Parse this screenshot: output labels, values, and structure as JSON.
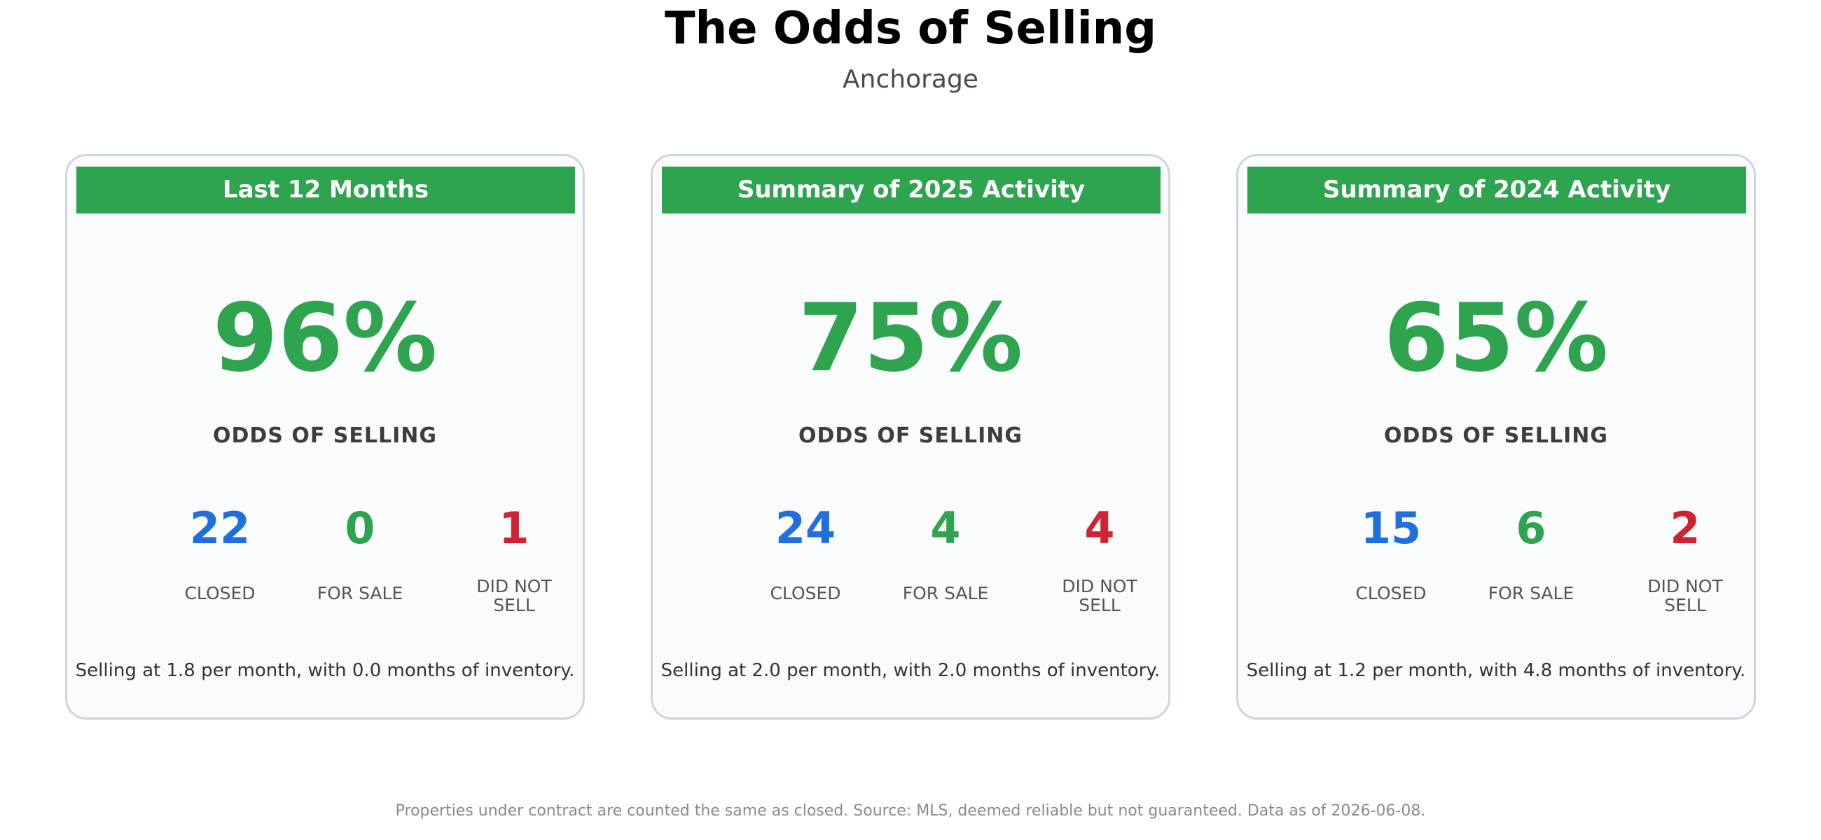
{
  "header": {
    "title": "The Odds of Selling",
    "subtitle": "Anchorage"
  },
  "colors": {
    "accent_green": "#2ea44f",
    "closed_blue": "#1f6fde",
    "did_not_sell_red": "#cf2233"
  },
  "cards": [
    {
      "header": "Last 12 Months",
      "odds": "96%",
      "odds_label": "ODDS OF SELLING",
      "closed": "22",
      "closed_label": "CLOSED",
      "for_sale": "0",
      "for_sale_label": "FOR SALE",
      "did_not_sell": "1",
      "did_not_sell_label_line1": "DID NOT",
      "did_not_sell_label_line2": "SELL",
      "summary": "Selling at 1.8 per month, with 0.0 months of inventory."
    },
    {
      "header": "Summary of 2025 Activity",
      "odds": "75%",
      "odds_label": "ODDS OF SELLING",
      "closed": "24",
      "closed_label": "CLOSED",
      "for_sale": "4",
      "for_sale_label": "FOR SALE",
      "did_not_sell": "4",
      "did_not_sell_label_line1": "DID NOT",
      "did_not_sell_label_line2": "SELL",
      "summary": "Selling at 2.0 per month, with 2.0 months of inventory."
    },
    {
      "header": "Summary of 2024 Activity",
      "odds": "65%",
      "odds_label": "ODDS OF SELLING",
      "closed": "15",
      "closed_label": "CLOSED",
      "for_sale": "6",
      "for_sale_label": "FOR SALE",
      "did_not_sell": "2",
      "did_not_sell_label_line1": "DID NOT",
      "did_not_sell_label_line2": "SELL",
      "summary": "Selling at 1.2 per month, with 4.8 months of inventory."
    }
  ],
  "footer": {
    "note": "Properties under contract are counted the same as closed. Source: MLS, deemed reliable but not guaranteed. Data as of 2026-06-08."
  }
}
